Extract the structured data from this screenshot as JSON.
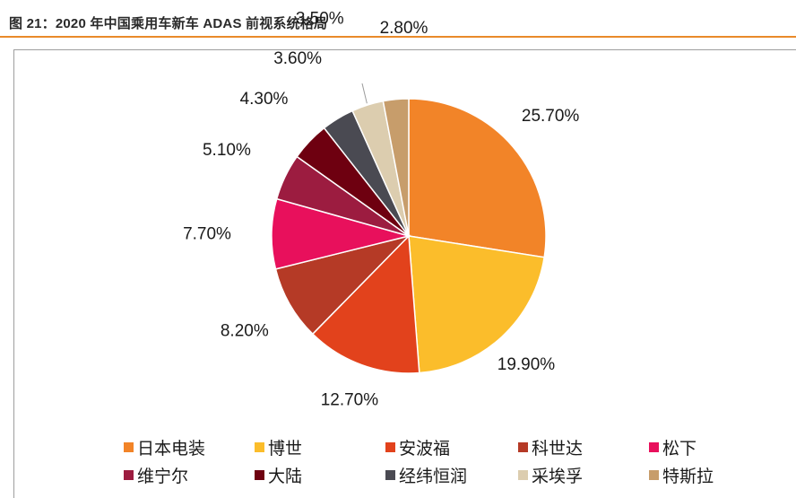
{
  "header": {
    "title": "图 21：2020 年中国乘用车新车 ADAS 前视系统格局"
  },
  "chart_data": {
    "type": "pie",
    "title": "",
    "start_angle_deg": 0,
    "direction": "clockwise",
    "legend_position": "bottom",
    "slices": [
      {
        "name": "日本电装",
        "value": 25.7,
        "label": "25.70%",
        "color": "#f28428"
      },
      {
        "name": "博世",
        "value": 19.9,
        "label": "19.90%",
        "color": "#fbbd2b"
      },
      {
        "name": "安波福",
        "value": 12.7,
        "label": "12.70%",
        "color": "#e2421c"
      },
      {
        "name": "科世达",
        "value": 8.2,
        "label": "8.20%",
        "color": "#b53a26"
      },
      {
        "name": "松下",
        "value": 7.7,
        "label": "7.70%",
        "color": "#e8105c"
      },
      {
        "name": "维宁尔",
        "value": 5.1,
        "label": "5.10%",
        "color": "#9c1c40"
      },
      {
        "name": "大陆",
        "value": 4.3,
        "label": "4.30%",
        "color": "#6e0010"
      },
      {
        "name": "经纬恒润",
        "value": 3.6,
        "label": "3.60%",
        "color": "#4a4a52"
      },
      {
        "name": "采埃孚",
        "value": 3.5,
        "label": "3.50%",
        "color": "#dccdaf"
      },
      {
        "name": "特斯拉",
        "value": 2.8,
        "label": "2.80%",
        "color": "#c79d6b"
      }
    ]
  }
}
